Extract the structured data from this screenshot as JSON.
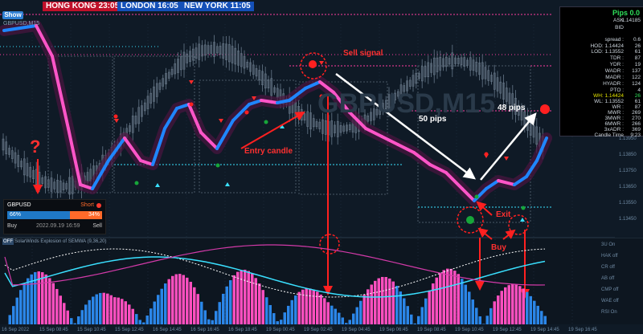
{
  "clocks": [
    {
      "city": "HONG KONG",
      "time": "23:05"
    },
    {
      "city": "LONDON",
      "time": "16:05"
    },
    {
      "city": "NEW YORK",
      "time": "11:05"
    }
  ],
  "show_button": "Show",
  "symbol_label": "GBPUSD,M15",
  "watermark": "GBPUSD,M15",
  "info_panel": {
    "pips": "Pips 0.0",
    "rows": [
      {
        "label": "ASK",
        "value": "1.14185"
      },
      {
        "label": "BID",
        "value": ""
      },
      {
        "label": "spread :",
        "value": "0.6"
      },
      {
        "label": "HOD: 1.14424",
        "value": "26"
      },
      {
        "label": "LOD: 1.13552",
        "value": "61"
      },
      {
        "label": "TDR :",
        "value": "87"
      },
      {
        "label": "YDR :",
        "value": "19"
      },
      {
        "label": "WADR :",
        "value": "137"
      },
      {
        "label": "MADR :",
        "value": "122"
      },
      {
        "label": "HYADR :",
        "value": "124"
      },
      {
        "label": "PTO :",
        "value": "4"
      },
      {
        "label": "WH: 1.14424",
        "value": "26"
      },
      {
        "label": "WL: 1.13552",
        "value": "61"
      },
      {
        "label": "WR :",
        "value": "87"
      },
      {
        "label": "MWR :",
        "value": "269"
      },
      {
        "label": "3MWR :",
        "value": "270"
      },
      {
        "label": "6MWR :",
        "value": "266"
      },
      {
        "label": "3xADR :",
        "value": "369"
      },
      {
        "label": "Candle Time",
        "value": "9:23"
      }
    ]
  },
  "trade_panel": {
    "symbol": "GBPUSD",
    "short_label": "Short",
    "buy_pct": "66%",
    "sell_pct": "34%",
    "buy_label": "Buy",
    "sell_label": "Sell",
    "datetime": "2022.09.19 16:59",
    "buy_color": "#1f78c6",
    "sell_color": "#ff6a2a"
  },
  "annotations": {
    "sell_signal": "Sell signal",
    "entry_candle": "Entry candle",
    "pips50": "50 pips",
    "pips48": "48 pips",
    "exit": "Exit",
    "buy": "Buy",
    "question": "?"
  },
  "oscillator": {
    "off_button": "OFF",
    "title": "SolarWinds Explosion of SEMWA (9,36,20)",
    "labels": [
      "3U On",
      "HAK off",
      "CR off",
      "AB off",
      "CMP off",
      "WAE off",
      "RSI On"
    ]
  },
  "x_ticks": [
    "16 Sep 2022",
    "15 Sep 08:45",
    "15 Sep 10:45",
    "15 Sep 12:45",
    "16 Sep 14:45",
    "16 Sep 16:45",
    "16 Sep 18:45",
    "19 Sep 00:45",
    "19 Sep 02:45",
    "19 Sep 04:45",
    "19 Sep 06:45",
    "19 Sep 08:45",
    "19 Sep 10:45",
    "19 Sep 12:45",
    "19 Sep 14:45",
    "19 Sep 16:45"
  ],
  "y_ticks": [
    "1.14650",
    "1.14550",
    "1.14450",
    "1.14350",
    "1.14250",
    "1.14150",
    "1.14050",
    "1.13950",
    "1.13850",
    "1.13750",
    "1.13650",
    "1.13550",
    "1.13450"
  ],
  "colors": {
    "bull": "#1f86ff",
    "bear": "#ff55c8",
    "ma": "#ff4fc0",
    "hist_blue": "#2b86e8",
    "hist_pink": "#ff4fbf",
    "signal_red": "#ff2020",
    "teal": "#3ae0ff"
  }
}
